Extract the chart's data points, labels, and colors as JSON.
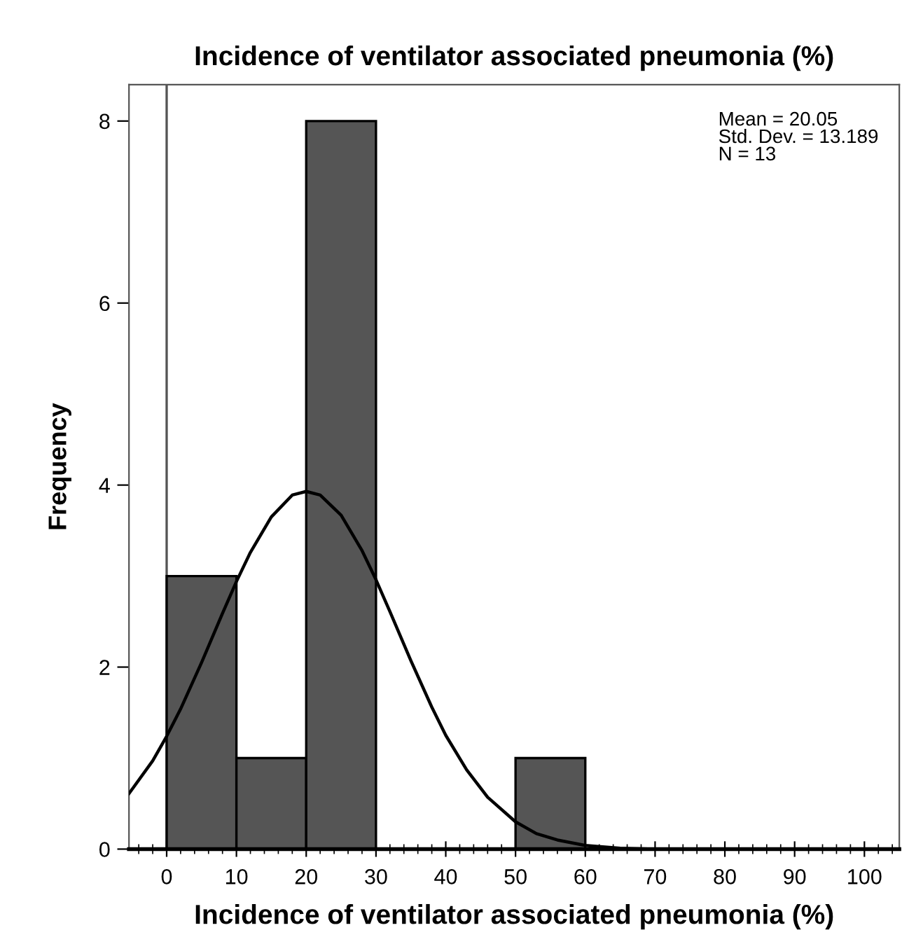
{
  "chart_data": {
    "type": "histogram",
    "title": "Incidence of ventilator associated pneumonia (%)",
    "xlabel": "Incidence of ventilator associated pneumonia (%)",
    "ylabel": "Frequency",
    "bins": [
      0,
      10,
      20,
      30,
      40,
      50,
      60
    ],
    "values": [
      3,
      1,
      8,
      0,
      0,
      1
    ],
    "color": "#555555",
    "series": [
      {
        "type": "line",
        "color": "#000000",
        "x": [
          -5.4,
          -2,
          0,
          2,
          5,
          8,
          10,
          12,
          15,
          18,
          20,
          22,
          25,
          28,
          30,
          32,
          35,
          38,
          40,
          43,
          46,
          50,
          53,
          56,
          60,
          65,
          70,
          80,
          90,
          105
        ],
        "values": [
          0.61,
          0.97,
          1.24,
          1.54,
          2.05,
          2.59,
          2.94,
          3.26,
          3.65,
          3.89,
          3.93,
          3.89,
          3.67,
          3.28,
          2.96,
          2.61,
          2.07,
          1.56,
          1.25,
          0.87,
          0.57,
          0.3,
          0.17,
          0.1,
          0.04,
          0.01,
          0.0,
          0.0,
          0.0,
          0.0
        ]
      }
    ],
    "ref_lines": [
      {
        "axis": "x",
        "value": 0,
        "color": "#555555"
      }
    ],
    "annotations": [
      "Mean = 20.05",
      "Std. Dev. = 13.189",
      "N = 13"
    ],
    "xlim": [
      -5.4,
      105
    ],
    "xticks": [
      0,
      10,
      20,
      30,
      40,
      50,
      60,
      70,
      80,
      90,
      100
    ],
    "ylim": [
      0,
      8.4
    ],
    "yticks": [
      0,
      2,
      4,
      6,
      8
    ],
    "grid": false,
    "legend": false
  }
}
